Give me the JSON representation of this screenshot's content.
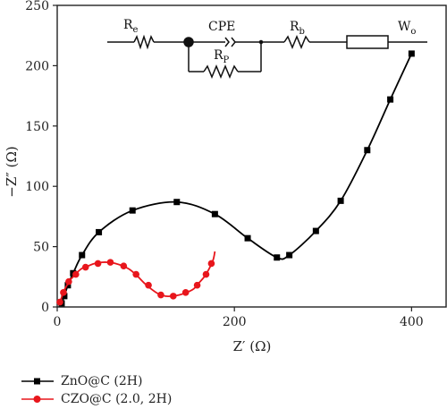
{
  "chart_data": {
    "type": "line",
    "xlabel": "Z′ (Ω)",
    "ylabel": "−Z″ (Ω)",
    "xlim": [
      0,
      440
    ],
    "ylim": [
      0,
      250
    ],
    "xticks": [
      "0",
      "200",
      "400"
    ],
    "xtick_values": [
      0,
      200,
      400
    ],
    "yticks": [
      "0",
      "50",
      "100",
      "150",
      "200",
      "250"
    ],
    "ytick_values": [
      0,
      50,
      100,
      150,
      200,
      250
    ],
    "grid": false,
    "legend_position": "bottom-left",
    "series": [
      {
        "name": "ZnO@C (2H)",
        "color": "#000000",
        "marker": "square",
        "points": [
          [
            5,
            3
          ],
          [
            8,
            9
          ],
          [
            12,
            18
          ],
          [
            18,
            28
          ],
          [
            28,
            43
          ],
          [
            47,
            62
          ],
          [
            85,
            80
          ],
          [
            135,
            87
          ],
          [
            178,
            77
          ],
          [
            215,
            57
          ],
          [
            248,
            41
          ],
          [
            262,
            43
          ],
          [
            292,
            63
          ],
          [
            320,
            88
          ],
          [
            350,
            130
          ],
          [
            376,
            172
          ],
          [
            400,
            210
          ]
        ],
        "markers": [
          [
            5,
            3
          ],
          [
            8,
            9
          ],
          [
            12,
            18
          ],
          [
            18,
            28
          ],
          [
            28,
            43
          ],
          [
            47,
            62
          ],
          [
            85,
            80
          ],
          [
            135,
            87
          ],
          [
            178,
            77
          ],
          [
            215,
            57
          ],
          [
            248,
            41
          ],
          [
            262,
            43
          ],
          [
            292,
            63
          ],
          [
            320,
            88
          ],
          [
            350,
            130
          ],
          [
            376,
            172
          ],
          [
            400,
            210
          ]
        ]
      },
      {
        "name": "CZO@C (2.0, 2H)",
        "color": "#e8161c",
        "marker": "circle",
        "points": [
          [
            2,
            2
          ],
          [
            4,
            6
          ],
          [
            6,
            10
          ],
          [
            8,
            14
          ],
          [
            11,
            18
          ],
          [
            14,
            22
          ],
          [
            18,
            25
          ],
          [
            23,
            29
          ],
          [
            28,
            32
          ],
          [
            35,
            34
          ],
          [
            42,
            36
          ],
          [
            50,
            37
          ],
          [
            58,
            37
          ],
          [
            66,
            36
          ],
          [
            74,
            34
          ],
          [
            82,
            31
          ],
          [
            90,
            26
          ],
          [
            98,
            20
          ],
          [
            106,
            15
          ],
          [
            114,
            11
          ],
          [
            122,
            9
          ],
          [
            130,
            9
          ],
          [
            138,
            10
          ],
          [
            146,
            12
          ],
          [
            154,
            15
          ],
          [
            160,
            20
          ],
          [
            166,
            25
          ],
          [
            171,
            31
          ],
          [
            176,
            39
          ],
          [
            178,
            46
          ]
        ],
        "markers": [
          [
            3,
            4
          ],
          [
            7,
            12
          ],
          [
            13,
            21
          ],
          [
            21,
            27
          ],
          [
            32,
            33
          ],
          [
            46,
            36
          ],
          [
            60,
            37
          ],
          [
            75,
            34
          ],
          [
            89,
            27
          ],
          [
            103,
            18
          ],
          [
            117,
            10
          ],
          [
            131,
            9
          ],
          [
            145,
            12
          ],
          [
            158,
            18
          ],
          [
            168,
            27
          ],
          [
            174,
            36
          ]
        ]
      }
    ]
  },
  "circuit": {
    "re": "R",
    "re_sub": "e",
    "cpe": "CPE",
    "rp": "R",
    "rp_sub": "P",
    "rb": "R",
    "rb_sub": "b",
    "wo": "W",
    "wo_sub": "o"
  },
  "colors": {
    "axis": "#222222",
    "circuit": "#111111"
  }
}
